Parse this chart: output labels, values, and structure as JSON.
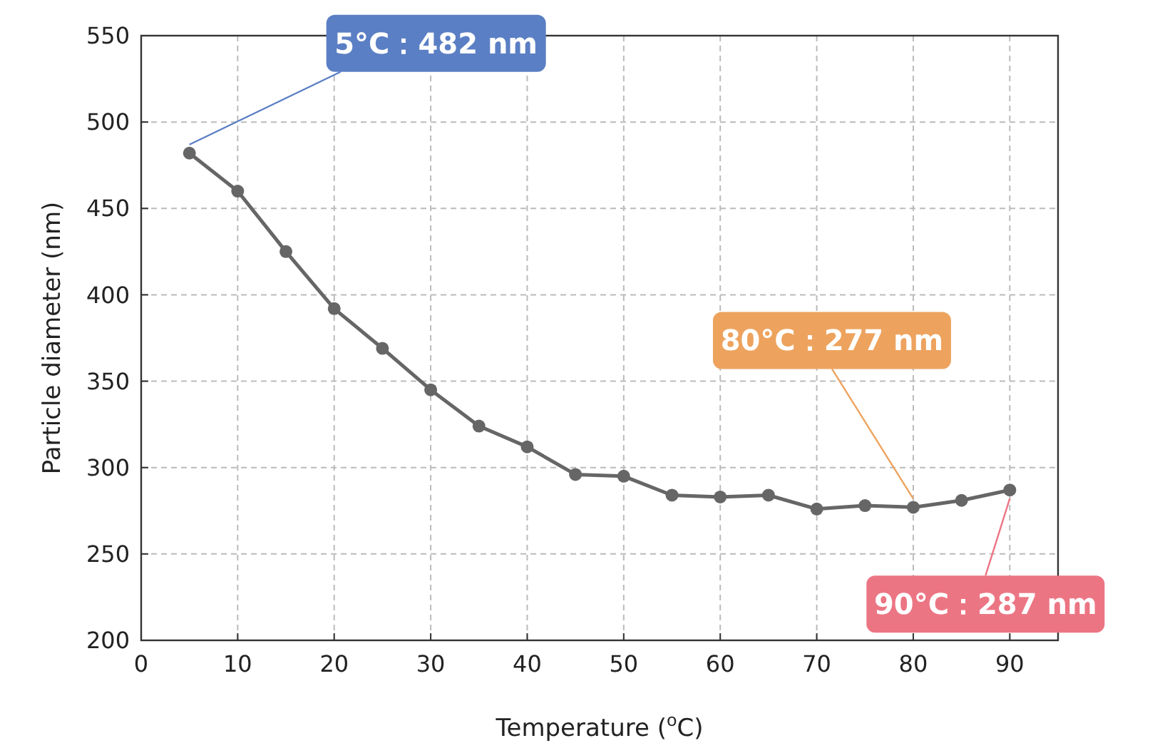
{
  "chart_data": {
    "type": "line",
    "xlabel": "Temperature ($^{o}$C)",
    "ylabel": "Particle diameter (nm)",
    "x": [
      5,
      10,
      15,
      20,
      25,
      30,
      35,
      40,
      45,
      50,
      55,
      60,
      65,
      70,
      75,
      80,
      85,
      90
    ],
    "series": [
      {
        "color": "#666666",
        "values": [
          482,
          460,
          425,
          392,
          369,
          345,
          324,
          312,
          296,
          295,
          284,
          283,
          284,
          276,
          278,
          277,
          281,
          287
        ]
      }
    ],
    "xlim": [
      0,
      95
    ],
    "xticks": [
      0,
      10,
      20,
      30,
      40,
      50,
      60,
      70,
      80,
      90
    ],
    "ylim": [
      200,
      550
    ],
    "yticks": [
      200,
      250,
      300,
      350,
      400,
      450,
      500,
      550
    ],
    "grid": true,
    "marker": "circle",
    "line_style": "solid",
    "annotations": [
      {
        "text": "5°C：482 nm",
        "x": 5,
        "y": 482
      },
      {
        "text": "80°C：277 nm",
        "x": 80,
        "y": 277
      },
      {
        "text": "90°C：287 nm",
        "x": 90,
        "y": 287
      }
    ]
  }
}
